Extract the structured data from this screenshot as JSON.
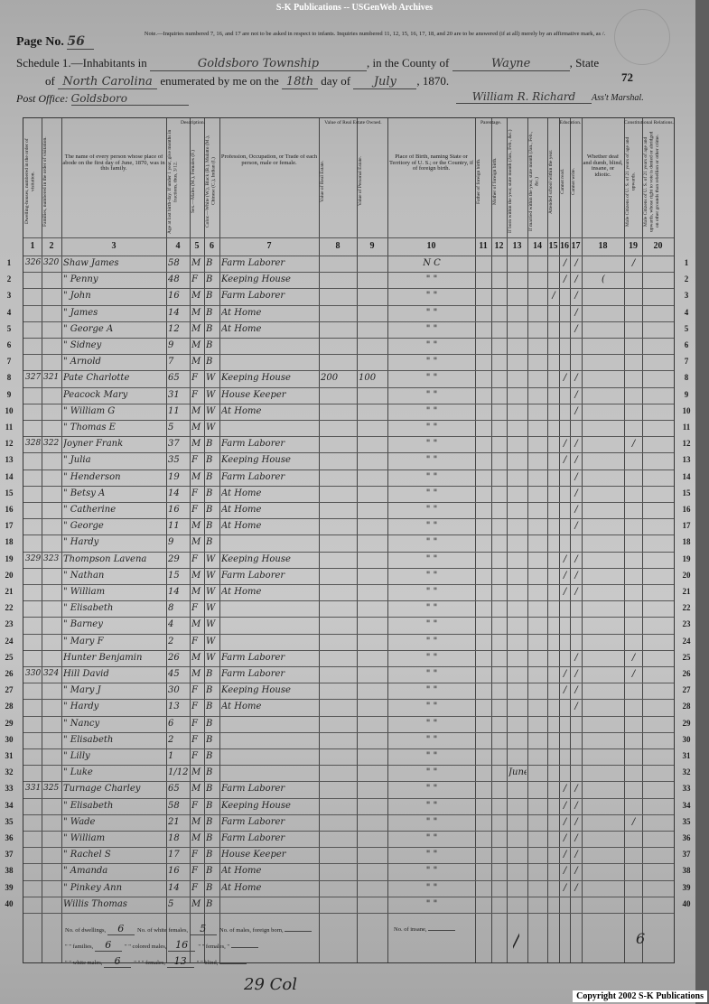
{
  "banner": "S-K Publications -- USGenWeb Archives",
  "copyright": "Copyright 2002 S-K Publications",
  "header": {
    "page_label": "Page No.",
    "page_no": "56",
    "note": "Note.—Inquiries numbered 7, 16, and 17 are not to be asked in respect to infants. Inquiries numbered 11, 12, 15, 16, 17, 18, and 20 are to be answered (if at all) merely by an affirmative mark, as /.",
    "schedule_label": "Schedule 1.—Inhabitants in",
    "township": "Goldsboro Township",
    "county_label": ", in the County of",
    "county": "Wayne",
    "state_label": ", State",
    "of_label": "of",
    "state": "North Carolina",
    "enumerated_label": "enumerated by me on the",
    "day": "18th",
    "day_of_label": "day of",
    "month": "July",
    "year": ", 1870.",
    "sheet_no": "72",
    "post_office_label": "Post Office:",
    "post_office": "Goldsboro",
    "marshal": "William R. Richard",
    "marshal_label": "Ass't Marshal."
  },
  "groups": {
    "description": "Description.",
    "value": "Value of Real Estate Owned.",
    "parentage": "Parentage.",
    "education": "Education.",
    "constitutional": "Constitutional Relations."
  },
  "columns": [
    {
      "num": "1",
      "label": "Dwelling-houses, numbered in the order of visitation."
    },
    {
      "num": "2",
      "label": "Families, numbered in the order of visitation."
    },
    {
      "num": "3",
      "label": "The name of every person whose place of abode on the first day of June, 1870, was in this family."
    },
    {
      "num": "4",
      "label": "Age at last birth-day. If under 1 year, give months in fractions, thus, 3/12."
    },
    {
      "num": "5",
      "label": "Sex.—Males (M.), Females (F.)"
    },
    {
      "num": "6",
      "label": "Color.—White (W.), Black (B.), Mulatto (M.), Chinese (C.), Indian (I.)"
    },
    {
      "num": "7",
      "label": "Profession, Occupation, or Trade of each person, male or female."
    },
    {
      "num": "8",
      "label": "Value of Real Estate."
    },
    {
      "num": "9",
      "label": "Value of Personal Estate."
    },
    {
      "num": "10",
      "label": "Place of Birth, naming State or Territory of U. S.; or the Country, if of foreign birth."
    },
    {
      "num": "11",
      "label": "Father of foreign birth."
    },
    {
      "num": "12",
      "label": "Mother of foreign birth."
    },
    {
      "num": "13",
      "label": "If born within the year, state month (Jan., Feb., &c.)"
    },
    {
      "num": "14",
      "label": "If married within the year, state month (Jan., Feb., &c.)"
    },
    {
      "num": "15",
      "label": "Attended school within the year."
    },
    {
      "num": "16",
      "label": "Cannot read."
    },
    {
      "num": "17",
      "label": "Cannot write."
    },
    {
      "num": "18",
      "label": "Whether deaf and dumb, blind, insane, or idiotic."
    },
    {
      "num": "19",
      "label": "Male Citizens of U. S. of 21 years of age and upwards."
    },
    {
      "num": "20",
      "label": "Male Citizens of U. S. of 21 years of age and upwards, whose right to vote is denied or abridged on other grounds than rebellion or other crime."
    }
  ],
  "rows": [
    [
      "326",
      "320",
      "Shaw James",
      "58",
      "M",
      "B",
      "Farm Laborer",
      "",
      "",
      "N C",
      "",
      "",
      "",
      "",
      "",
      "/",
      "/",
      "",
      "/",
      ""
    ],
    [
      "",
      "",
      "\" Penny",
      "48",
      "F",
      "B",
      "Keeping House",
      "",
      "",
      "\"   \"",
      "",
      "",
      "",
      "",
      "",
      "/",
      "/",
      "(",
      "",
      ""
    ],
    [
      "",
      "",
      "\" John",
      "16",
      "M",
      "B",
      "Farm Laborer",
      "",
      "",
      "\"   \"",
      "",
      "",
      "",
      "",
      "/",
      "",
      "/",
      "",
      "",
      ""
    ],
    [
      "",
      "",
      "\" James",
      "14",
      "M",
      "B",
      "At Home",
      "",
      "",
      "\"   \"",
      "",
      "",
      "",
      "",
      "",
      "",
      "/",
      "",
      "",
      ""
    ],
    [
      "",
      "",
      "\" George A",
      "12",
      "M",
      "B",
      "At Home",
      "",
      "",
      "\"   \"",
      "",
      "",
      "",
      "",
      "",
      "",
      "/",
      "",
      "",
      ""
    ],
    [
      "",
      "",
      "\" Sidney",
      "9",
      "M",
      "B",
      "",
      "",
      "",
      "\"   \"",
      "",
      "",
      "",
      "",
      "",
      "",
      "",
      "",
      "",
      ""
    ],
    [
      "",
      "",
      "\" Arnold",
      "7",
      "M",
      "B",
      "",
      "",
      "",
      "\"   \"",
      "",
      "",
      "",
      "",
      "",
      "",
      "",
      "",
      "",
      ""
    ],
    [
      "327",
      "321",
      "Pate Charlotte",
      "65",
      "F",
      "W",
      "Keeping House",
      "200",
      "100",
      "\"   \"",
      "",
      "",
      "",
      "",
      "",
      "/",
      "/",
      "",
      "",
      ""
    ],
    [
      "",
      "",
      "Peacock Mary",
      "31",
      "F",
      "W",
      "House Keeper",
      "",
      "",
      "\"   \"",
      "",
      "",
      "",
      "",
      "",
      "",
      "/",
      "",
      "",
      ""
    ],
    [
      "",
      "",
      "\" William G",
      "11",
      "M",
      "W",
      "At Home",
      "",
      "",
      "\"   \"",
      "",
      "",
      "",
      "",
      "",
      "",
      "/",
      "",
      "",
      ""
    ],
    [
      "",
      "",
      "\" Thomas E",
      "5",
      "M",
      "W",
      "",
      "",
      "",
      "\"   \"",
      "",
      "",
      "",
      "",
      "",
      "",
      "",
      "",
      "",
      ""
    ],
    [
      "328",
      "322",
      "Joyner Frank",
      "37",
      "M",
      "B",
      "Farm Laborer",
      "",
      "",
      "\"   \"",
      "",
      "",
      "",
      "",
      "",
      "/",
      "/",
      "",
      "/",
      ""
    ],
    [
      "",
      "",
      "\" Julia",
      "35",
      "F",
      "B",
      "Keeping House",
      "",
      "",
      "\"   \"",
      "",
      "",
      "",
      "",
      "",
      "/",
      "/",
      "",
      "",
      ""
    ],
    [
      "",
      "",
      "\" Henderson",
      "19",
      "M",
      "B",
      "Farm Laborer",
      "",
      "",
      "\"   \"",
      "",
      "",
      "",
      "",
      "",
      "",
      "/",
      "",
      "",
      ""
    ],
    [
      "",
      "",
      "\" Betsy A",
      "14",
      "F",
      "B",
      "At Home",
      "",
      "",
      "\"   \"",
      "",
      "",
      "",
      "",
      "",
      "",
      "/",
      "",
      "",
      ""
    ],
    [
      "",
      "",
      "\" Catherine",
      "16",
      "F",
      "B",
      "At Home",
      "",
      "",
      "\"   \"",
      "",
      "",
      "",
      "",
      "",
      "",
      "/",
      "",
      "",
      ""
    ],
    [
      "",
      "",
      "\" George",
      "11",
      "M",
      "B",
      "At Home",
      "",
      "",
      "\"   \"",
      "",
      "",
      "",
      "",
      "",
      "",
      "/",
      "",
      "",
      ""
    ],
    [
      "",
      "",
      "\" Hardy",
      "9",
      "M",
      "B",
      "",
      "",
      "",
      "\"   \"",
      "",
      "",
      "",
      "",
      "",
      "",
      "",
      "",
      "",
      ""
    ],
    [
      "329",
      "323",
      "Thompson Lavena",
      "29",
      "F",
      "W",
      "Keeping House",
      "",
      "",
      "\"   \"",
      "",
      "",
      "",
      "",
      "",
      "/",
      "/",
      "",
      "",
      ""
    ],
    [
      "",
      "",
      "\" Nathan",
      "15",
      "M",
      "W",
      "Farm Laborer",
      "",
      "",
      "\"   \"",
      "",
      "",
      "",
      "",
      "",
      "/",
      "/",
      "",
      "",
      ""
    ],
    [
      "",
      "",
      "\" William",
      "14",
      "M",
      "W",
      "At Home",
      "",
      "",
      "\"   \"",
      "",
      "",
      "",
      "",
      "",
      "/",
      "/",
      "",
      "",
      ""
    ],
    [
      "",
      "",
      "\" Elisabeth",
      "8",
      "F",
      "W",
      "",
      "",
      "",
      "\"   \"",
      "",
      "",
      "",
      "",
      "",
      "",
      "",
      "",
      "",
      ""
    ],
    [
      "",
      "",
      "\" Barney",
      "4",
      "M",
      "W",
      "",
      "",
      "",
      "\"   \"",
      "",
      "",
      "",
      "",
      "",
      "",
      "",
      "",
      "",
      ""
    ],
    [
      "",
      "",
      "\" Mary F",
      "2",
      "F",
      "W",
      "",
      "",
      "",
      "\"   \"",
      "",
      "",
      "",
      "",
      "",
      "",
      "",
      "",
      "",
      ""
    ],
    [
      "",
      "",
      "Hunter Benjamin",
      "26",
      "M",
      "W",
      "Farm Laborer",
      "",
      "",
      "\"   \"",
      "",
      "",
      "",
      "",
      "",
      "",
      "/",
      "",
      "/",
      ""
    ],
    [
      "330",
      "324",
      "Hill David",
      "45",
      "M",
      "B",
      "Farm Laborer",
      "",
      "",
      "\"   \"",
      "",
      "",
      "",
      "",
      "",
      "/",
      "/",
      "",
      "/",
      ""
    ],
    [
      "",
      "",
      "\" Mary J",
      "30",
      "F",
      "B",
      "Keeping House",
      "",
      "",
      "\"   \"",
      "",
      "",
      "",
      "",
      "",
      "/",
      "/",
      "",
      "",
      ""
    ],
    [
      "",
      "",
      "\" Hardy",
      "13",
      "F",
      "B",
      "At Home",
      "",
      "",
      "\"   \"",
      "",
      "",
      "",
      "",
      "",
      "",
      "/",
      "",
      "",
      ""
    ],
    [
      "",
      "",
      "\" Nancy",
      "6",
      "F",
      "B",
      "",
      "",
      "",
      "\"   \"",
      "",
      "",
      "",
      "",
      "",
      "",
      "",
      "",
      "",
      ""
    ],
    [
      "",
      "",
      "\" Elisabeth",
      "2",
      "F",
      "B",
      "",
      "",
      "",
      "\"   \"",
      "",
      "",
      "",
      "",
      "",
      "",
      "",
      "",
      "",
      ""
    ],
    [
      "",
      "",
      "\" Lilly",
      "1",
      "F",
      "B",
      "",
      "",
      "",
      "\"   \"",
      "",
      "",
      "",
      "",
      "",
      "",
      "",
      "",
      "",
      ""
    ],
    [
      "",
      "",
      "\" Luke",
      "1/12",
      "M",
      "B",
      "",
      "",
      "",
      "\"   \"",
      "",
      "",
      "June",
      "",
      "",
      "",
      "",
      "",
      "",
      ""
    ],
    [
      "331",
      "325",
      "Turnage Charley",
      "65",
      "M",
      "B",
      "Farm Laborer",
      "",
      "",
      "\"   \"",
      "",
      "",
      "",
      "",
      "",
      "/",
      "/",
      "",
      "",
      ""
    ],
    [
      "",
      "",
      "\" Elisabeth",
      "58",
      "F",
      "B",
      "Keeping House",
      "",
      "",
      "\"   \"",
      "",
      "",
      "",
      "",
      "",
      "/",
      "/",
      "",
      "",
      ""
    ],
    [
      "",
      "",
      "\" Wade",
      "21",
      "M",
      "B",
      "Farm Laborer",
      "",
      "",
      "\"   \"",
      "",
      "",
      "",
      "",
      "",
      "/",
      "/",
      "",
      "/",
      ""
    ],
    [
      "",
      "",
      "\" William",
      "18",
      "M",
      "B",
      "Farm Laborer",
      "",
      "",
      "\"   \"",
      "",
      "",
      "",
      "",
      "",
      "/",
      "/",
      "",
      "",
      ""
    ],
    [
      "",
      "",
      "\" Rachel S",
      "17",
      "F",
      "B",
      "House Keeper",
      "",
      "",
      "\"   \"",
      "",
      "",
      "",
      "",
      "",
      "/",
      "/",
      "",
      "",
      ""
    ],
    [
      "",
      "",
      "\" Amanda",
      "16",
      "F",
      "B",
      "At Home",
      "",
      "",
      "\"   \"",
      "",
      "",
      "",
      "",
      "",
      "/",
      "/",
      "",
      "",
      ""
    ],
    [
      "",
      "",
      "\" Pinkey Ann",
      "14",
      "F",
      "B",
      "At Home",
      "",
      "",
      "\"   \"",
      "",
      "",
      "",
      "",
      "",
      "/",
      "/",
      "",
      "",
      ""
    ],
    [
      "",
      "",
      "Willis Thomas",
      "5",
      "M",
      "B",
      "",
      "",
      "",
      "\"   \"",
      "",
      "",
      "",
      "",
      "",
      "",
      "",
      "",
      "",
      ""
    ]
  ],
  "summary": {
    "dwellings_label": "No. of dwellings,",
    "dwellings": "6",
    "white_females_label": "No. of white females,",
    "white_females": "5",
    "foreign_males_label": "No. of males, foreign born,",
    "foreign_males": "",
    "families_label": "\" \" families,",
    "families": "6",
    "colored_males_label": "\" \" colored males,",
    "colored_males": "16",
    "foreign_females_label": "\" \" females, \"",
    "foreign_females": "",
    "white_males_label": "\" \" white males,",
    "white_males": "6",
    "colored_females_label": "\" \" \" females,",
    "colored_females": "13",
    "blind_label": "\" \" blind,",
    "blind": "",
    "insane_label": "No. of insane,",
    "insane": "",
    "tally_mark": "/",
    "tally_initials": "6"
  },
  "bottom_note": "29 Col"
}
